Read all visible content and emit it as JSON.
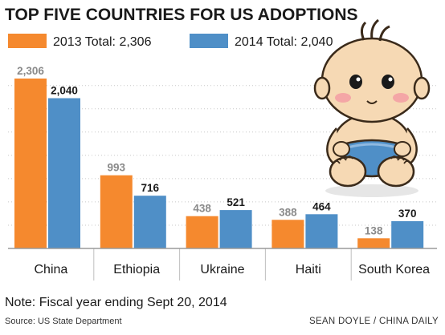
{
  "chart_data": {
    "type": "bar",
    "title": "TOP FIVE COUNTRIES FOR US ADOPTIONS",
    "categories": [
      "China",
      "Ethiopia",
      "Ukraine",
      "Haiti",
      "South Korea"
    ],
    "series": [
      {
        "name": "2013 Total: 2,306",
        "values": [
          2306,
          993,
          438,
          388,
          138
        ],
        "labels": [
          "2,306",
          "993",
          "438",
          "388",
          "138"
        ],
        "color": "#f5892e"
      },
      {
        "name": "2014 Total: 2,040",
        "values": [
          2040,
          716,
          521,
          464,
          370
        ],
        "labels": [
          "2,040",
          "716",
          "521",
          "464",
          "370"
        ],
        "color": "#4f8fc7"
      }
    ],
    "ylim": [
      0,
      2306
    ],
    "grid": true,
    "legend_position": "top-left",
    "xlabel": "",
    "ylabel": ""
  },
  "note": "Note: Fiscal year ending Sept 20, 2014",
  "source": "Source: US State Department",
  "credit": "SEAN DOYLE / CHINA DAILY",
  "illustration": {
    "icon": "baby-illustration"
  }
}
